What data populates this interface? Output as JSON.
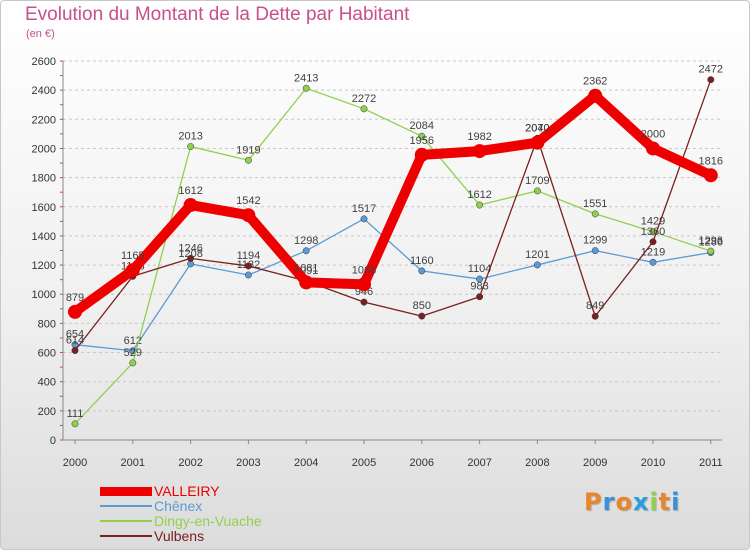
{
  "chart_data": {
    "type": "line",
    "title": "Evolution du Montant de la Dette par Habitant",
    "subtitle": "(en €)",
    "xlabel": "",
    "ylabel": "",
    "categories": [
      "2000",
      "2001",
      "2002",
      "2003",
      "2004",
      "2005",
      "2006",
      "2007",
      "2008",
      "2009",
      "2010",
      "2011"
    ],
    "ylim": [
      0,
      2600
    ],
    "yticks": [
      0,
      200,
      400,
      600,
      800,
      1000,
      1200,
      1400,
      1600,
      1800,
      2000,
      2200,
      2400,
      2600
    ],
    "grid": "horizontal dashed",
    "legend_position": "bottom-left",
    "series": [
      {
        "name": "VALLEIRY",
        "color": "#ee0000",
        "values": [
          879,
          1165,
          1612,
          1542,
          1081,
          1068,
          1956,
          1982,
          2040,
          2362,
          2000,
          1816
        ]
      },
      {
        "name": "Chênex",
        "color": "#5b9bd5",
        "values": [
          654,
          612,
          1208,
          1132,
          1298,
          1517,
          1160,
          1104,
          1201,
          1299,
          1219,
          1286
        ]
      },
      {
        "name": "Dingy-en-Vuache",
        "color": "#8fd14f",
        "values": [
          111,
          529,
          2013,
          1919,
          2413,
          2272,
          2084,
          1612,
          1709,
          1551,
          1429,
          1296
        ]
      },
      {
        "name": "Vulbens",
        "color": "#7b2020",
        "values": [
          614,
          1123,
          1246,
          1194,
          1091,
          946,
          850,
          983,
          2070,
          849,
          1360,
          2472
        ]
      }
    ]
  },
  "brand": {
    "letters": [
      "P",
      "r",
      "o",
      "x",
      "i",
      "t",
      "i"
    ],
    "colors": [
      "#e8862a",
      "#3a8fd8",
      "#e8862a",
      "#2a9de0",
      "#8fd14f",
      "#e8862a",
      "#3a8fd8"
    ]
  }
}
